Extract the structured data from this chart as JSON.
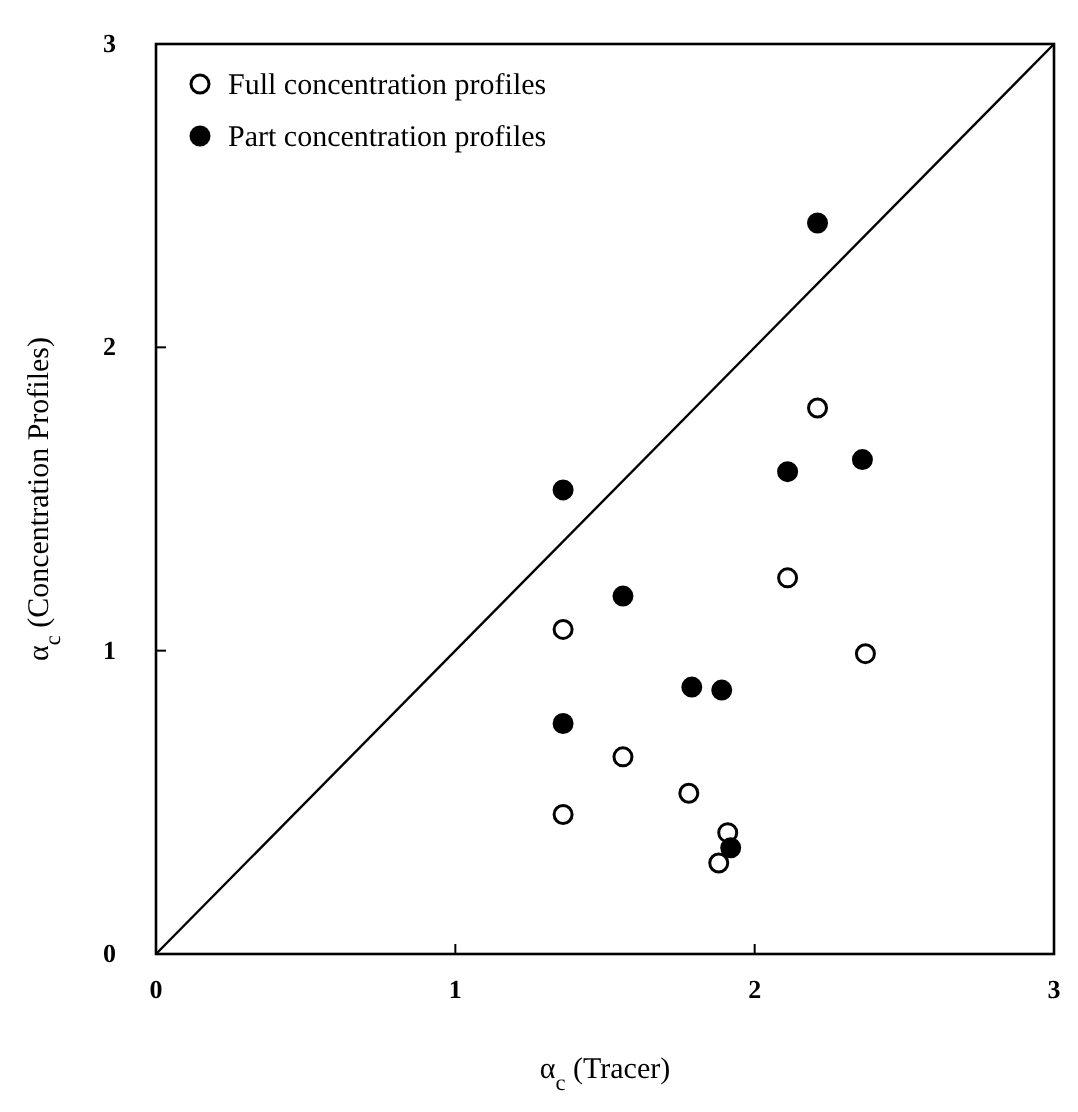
{
  "chart_data": {
    "type": "scatter",
    "xlabel": "α$_{c}$ (Tracer)",
    "ylabel": "α$_{c}$ (Concentration Profiles)",
    "xlim": [
      0,
      3
    ],
    "ylim": [
      0,
      3
    ],
    "xticks": [
      0,
      1,
      2,
      3
    ],
    "yticks": [
      0,
      1,
      2,
      3
    ],
    "grid": false,
    "legend": "top left",
    "series": [
      {
        "name": "Full concentration profiles",
        "color": "#ffffff",
        "marker": "circle",
        "x": [
          2.21,
          2.11,
          2.37,
          1.36,
          1.56,
          1.78,
          1.36,
          1.91,
          1.88
        ],
        "values": [
          1.8,
          1.24,
          0.99,
          1.07,
          0.65,
          0.53,
          0.46,
          0.4,
          0.3
        ]
      },
      {
        "name": "Part concentration profiles",
        "color": "#000000",
        "marker": "circle",
        "x": [
          2.21,
          2.11,
          2.36,
          1.36,
          1.56,
          1.79,
          1.89,
          1.36,
          1.92
        ],
        "values": [
          2.41,
          1.59,
          1.63,
          1.53,
          1.18,
          0.88,
          0.87,
          0.76,
          0.35
        ]
      },
      {
        "type": "line",
        "color": "#000000",
        "marker": "none",
        "x": [
          0,
          3
        ],
        "values": [
          0,
          3
        ]
      }
    ]
  }
}
